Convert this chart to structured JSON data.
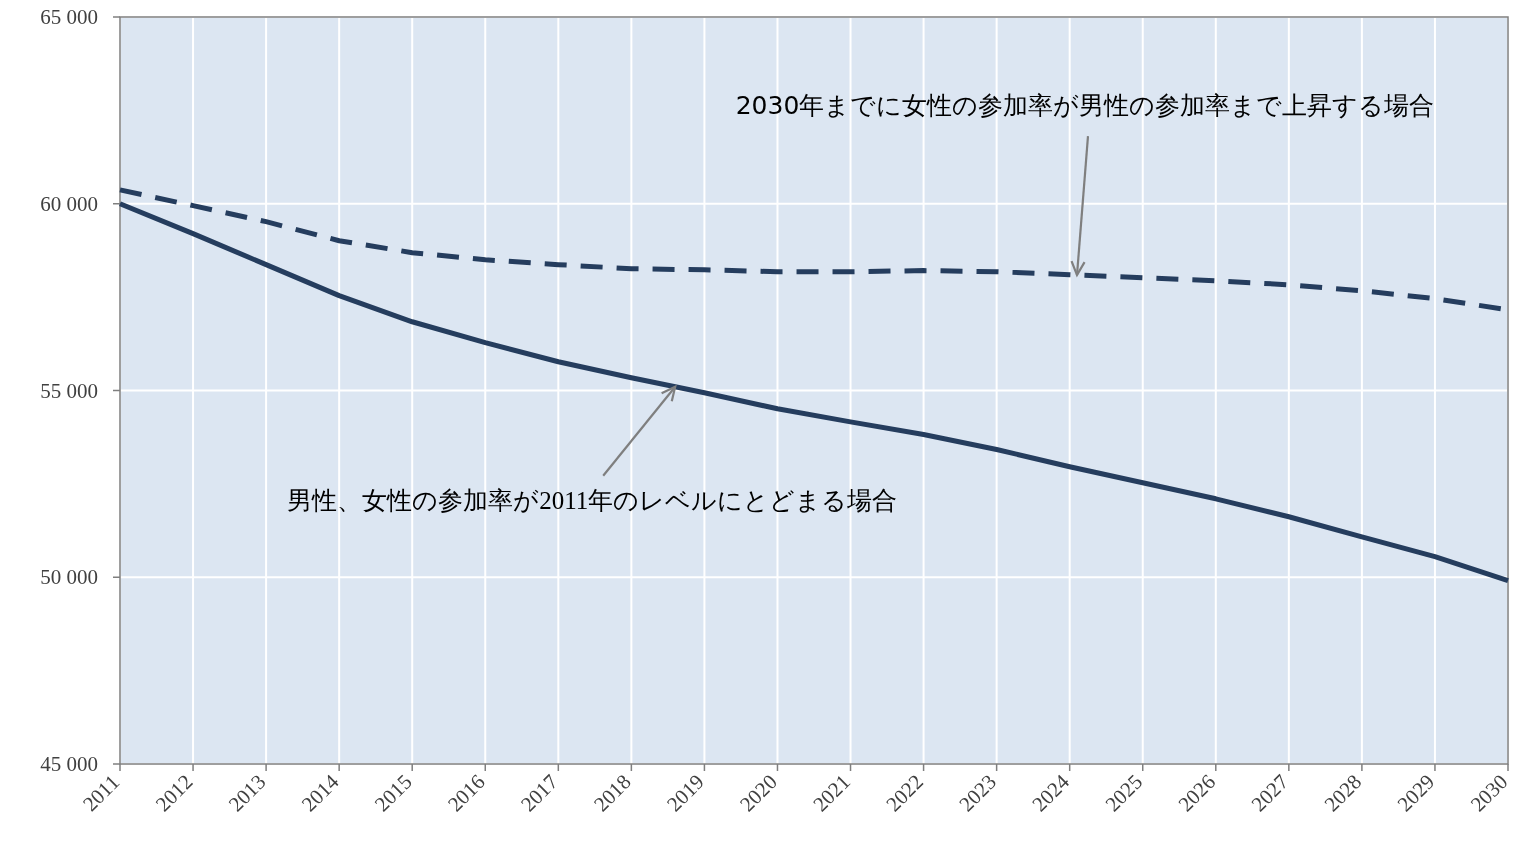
{
  "chart_data": {
    "type": "line",
    "x": [
      2011,
      2012,
      2013,
      2014,
      2015,
      2016,
      2017,
      2018,
      2019,
      2020,
      2021,
      2022,
      2023,
      2024,
      2025,
      2026,
      2027,
      2028,
      2029,
      2030
    ],
    "series": [
      {
        "color": "#253d5e",
        "line_style": "solid",
        "values": [
          60000,
          59200,
          58370,
          57540,
          56840,
          56280,
          55770,
          55340,
          54940,
          54510,
          54160,
          53820,
          53420,
          52960,
          52530,
          52100,
          51620,
          51080,
          50550,
          49910
        ]
      },
      {
        "color": "#253d5e",
        "line_style": "dashed",
        "values": [
          60370,
          59950,
          59520,
          59010,
          58690,
          58500,
          58370,
          58260,
          58230,
          58180,
          58180,
          58210,
          58180,
          58100,
          58020,
          57940,
          57830,
          57670,
          57460,
          57160
        ]
      }
    ],
    "xlim": [
      2011,
      2030
    ],
    "xticks": [
      2011,
      2012,
      2013,
      2014,
      2015,
      2016,
      2017,
      2018,
      2019,
      2020,
      2021,
      2022,
      2023,
      2024,
      2025,
      2026,
      2027,
      2028,
      2029,
      2030
    ],
    "ylim": [
      45000,
      65000
    ],
    "yticks": [
      {
        "value": 45000,
        "label": "45 000"
      },
      {
        "value": 50000,
        "label": "50 000"
      },
      {
        "value": 55000,
        "label": "55 000"
      },
      {
        "value": 60000,
        "label": "60 000"
      },
      {
        "value": 65000,
        "label": "65 000"
      }
    ],
    "grid": true,
    "marker": "none",
    "annotations": [
      {
        "text": "2030年までに女性の参加率が男性の参加率まで上昇する場合",
        "x": 2024.1,
        "y": 58090
      },
      {
        "text": "男性、女性の参加率が2011年のレベルにとどまる場合",
        "x": 2018.6,
        "y": 55100
      }
    ]
  }
}
